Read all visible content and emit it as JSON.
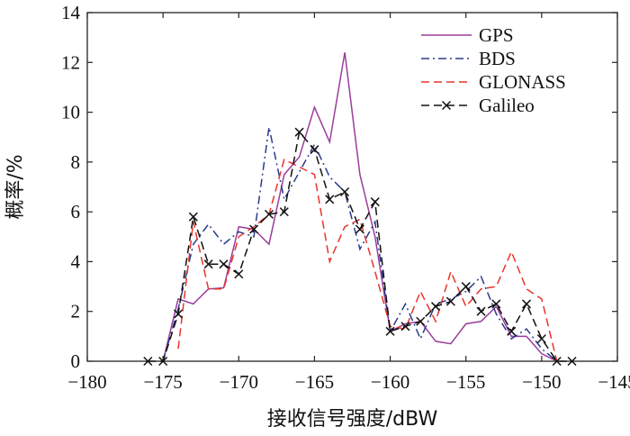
{
  "chart_data": {
    "type": "line",
    "xlabel": "接收信号强度/dBW",
    "ylabel": "概率/%",
    "xlim": [
      -180,
      -145
    ],
    "ylim": [
      0,
      14
    ],
    "x_ticks": [
      -180,
      -175,
      -170,
      -165,
      -160,
      -155,
      -150,
      -145
    ],
    "x_tick_labels": [
      "−180",
      "−175",
      "−170",
      "−165",
      "−160",
      "−155",
      "−150",
      "−145"
    ],
    "y_ticks": [
      0,
      2,
      4,
      6,
      8,
      10,
      12,
      14
    ],
    "y_tick_labels": [
      "0",
      "2",
      "4",
      "6",
      "8",
      "10",
      "12",
      "14"
    ],
    "grid": false,
    "legend_position": "top-right",
    "series": [
      {
        "name": "GPS",
        "color": "#9b3d9b",
        "dash": "solid",
        "marker": "none",
        "x": [
          -175,
          -174,
          -173,
          -172,
          -171,
          -170,
          -169,
          -168,
          -167,
          -166,
          -165,
          -164,
          -163,
          -162,
          -161,
          -160,
          -159,
          -158,
          -157,
          -156,
          -155,
          -154,
          -153,
          -152,
          -151,
          -150,
          -149
        ],
        "y": [
          0,
          2.5,
          2.3,
          2.9,
          2.95,
          5.4,
          5.3,
          4.7,
          7.5,
          8.2,
          10.2,
          8.8,
          12.4,
          7.5,
          5.0,
          1.2,
          1.5,
          1.6,
          0.8,
          0.7,
          1.5,
          1.6,
          2.2,
          1.0,
          1.0,
          0.3,
          0
        ]
      },
      {
        "name": "BDS",
        "color": "#2b3a8c",
        "dash": "dashdot",
        "marker": "none",
        "x": [
          -175,
          -174,
          -173,
          -172,
          -171,
          -170,
          -169,
          -168,
          -167,
          -166,
          -165,
          -164,
          -163,
          -162,
          -161,
          -160,
          -159,
          -158,
          -157,
          -156,
          -155,
          -154,
          -153,
          -152,
          -151,
          -150,
          -149
        ],
        "y": [
          0,
          2.1,
          4.7,
          5.5,
          4.7,
          5.2,
          5.0,
          9.4,
          6.5,
          7.6,
          8.7,
          7.4,
          6.8,
          4.5,
          5.6,
          1.2,
          2.3,
          0.9,
          2.3,
          2.5,
          2.8,
          3.4,
          1.9,
          0.9,
          1.3,
          0.5,
          0
        ]
      },
      {
        "name": "GLONASS",
        "color": "#e8342a",
        "dash": "dashed",
        "marker": "none",
        "x": [
          -174,
          -173,
          -172,
          -171,
          -170,
          -169,
          -168,
          -167,
          -166,
          -165,
          -164,
          -163,
          -162,
          -161,
          -160,
          -159,
          -158,
          -157,
          -156,
          -155,
          -154,
          -153,
          -152,
          -151,
          -150,
          -149
        ],
        "y": [
          0.5,
          5.6,
          2.9,
          2.9,
          5.0,
          5.4,
          5.9,
          8.1,
          7.8,
          7.5,
          4.0,
          5.4,
          5.7,
          3.6,
          1.4,
          1.3,
          2.8,
          1.6,
          3.6,
          2.2,
          2.9,
          3.0,
          4.4,
          2.9,
          2.5,
          0
        ]
      },
      {
        "name": "Galileo",
        "color": "#111111",
        "dash": "dashed",
        "marker": "x",
        "x": [
          -176,
          -175,
          -174,
          -173,
          -172,
          -171,
          -170,
          -169,
          -168,
          -167,
          -166,
          -165,
          -164,
          -163,
          -162,
          -161,
          -160,
          -159,
          -158,
          -157,
          -156,
          -155,
          -154,
          -153,
          -152,
          -151,
          -150,
          -149,
          -148
        ],
        "y": [
          0,
          0,
          1.9,
          5.8,
          3.9,
          3.9,
          3.5,
          5.3,
          5.9,
          6.0,
          9.2,
          8.5,
          6.5,
          6.8,
          5.3,
          6.4,
          1.2,
          1.4,
          1.6,
          2.2,
          2.4,
          3.0,
          2.0,
          2.3,
          1.2,
          2.3,
          0.9,
          0,
          0
        ]
      }
    ]
  }
}
